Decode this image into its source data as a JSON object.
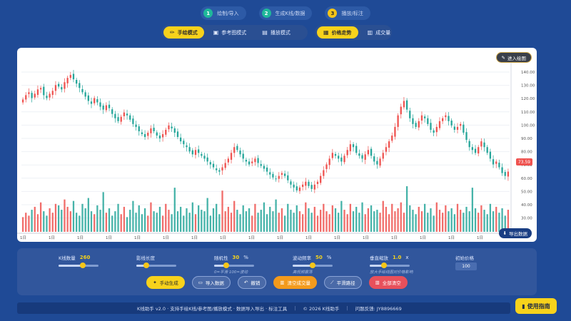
{
  "steps": [
    {
      "num": "1",
      "label": "绘制/导入"
    },
    {
      "num": "2",
      "label": "生成K线/数据"
    },
    {
      "num": "3",
      "label": "播放/标注"
    }
  ],
  "modes": {
    "draw": "手绘模式",
    "reference": "参考图模式",
    "play": "播放模式",
    "trend": "价格走势",
    "volume": "成交量"
  },
  "chart": {
    "enter_draw": "进入绘图",
    "export": "导出数据",
    "current_price": "73.59",
    "y_ticks": [
      "140.00",
      "130.00",
      "120.00",
      "110.00",
      "100.00",
      "90.00",
      "80.00",
      "70.00",
      "60.00",
      "50.00",
      "40.00",
      "30.00"
    ],
    "x_ticks": [
      "1日",
      "1日",
      "1日",
      "1日",
      "1日",
      "1日",
      "1日",
      "1日",
      "1日",
      "1日",
      "1日",
      "1日",
      "1日",
      "1日",
      "1日",
      "1日",
      "1日"
    ]
  },
  "chart_data": {
    "type": "candlestick",
    "ylim": [
      20,
      145
    ],
    "price_ylim": [
      55,
      145
    ],
    "close": [
      123,
      126,
      128,
      124,
      127,
      130,
      131,
      126,
      124,
      127,
      129,
      133,
      132,
      130,
      135,
      138,
      140,
      137,
      134,
      131,
      128,
      125,
      122,
      120,
      124,
      121,
      118,
      116,
      119,
      117,
      113,
      110,
      108,
      111,
      114,
      112,
      109,
      106,
      104,
      101,
      99,
      97,
      100,
      103,
      101,
      98,
      96,
      99,
      102,
      105,
      103,
      100,
      97,
      94,
      92,
      90,
      87,
      85,
      88,
      86,
      84,
      82,
      80,
      78,
      76,
      74,
      73,
      76,
      79,
      82,
      86,
      90,
      88,
      85,
      82,
      80,
      78,
      80,
      82,
      79,
      77,
      75,
      73,
      71,
      69,
      68,
      70,
      72,
      70,
      67,
      64,
      62,
      60,
      62,
      64,
      66,
      63,
      61,
      64,
      66,
      70,
      74,
      78,
      82,
      86,
      84,
      82,
      80,
      84,
      88,
      92,
      90,
      86,
      84,
      82,
      85,
      88,
      84,
      80,
      78,
      82,
      86,
      90,
      94,
      98,
      104,
      112,
      118,
      122,
      116,
      110,
      106,
      104,
      108,
      112,
      110,
      106,
      102,
      100,
      104,
      108,
      110,
      112,
      108,
      105,
      102,
      104,
      106,
      100,
      95,
      90,
      88,
      86,
      90,
      94,
      90,
      86,
      82,
      78,
      80,
      76,
      72,
      70,
      73
    ],
    "volume": [
      35,
      38,
      36,
      40,
      42,
      37,
      45,
      39,
      36,
      41,
      38,
      44,
      43,
      40,
      47,
      42,
      39,
      46,
      38,
      36,
      44,
      41,
      48,
      39,
      37,
      43,
      40,
      52,
      38,
      41,
      36,
      39,
      44,
      37,
      42,
      35,
      40,
      46,
      38,
      43,
      37,
      41,
      36,
      45,
      39,
      38,
      42,
      36,
      44,
      40,
      37,
      55,
      39,
      42,
      36,
      41,
      38,
      45,
      37,
      43,
      40,
      39,
      48,
      36,
      41,
      44,
      37,
      53,
      39,
      42,
      38,
      46,
      40,
      37,
      43,
      39,
      41,
      36,
      44,
      38,
      40,
      45,
      37,
      42,
      39,
      47,
      38,
      41,
      36,
      44,
      40,
      38,
      43,
      39,
      37,
      45,
      41,
      38,
      42,
      36,
      40,
      44,
      39,
      37,
      43,
      41,
      38,
      46,
      40,
      37,
      44,
      39,
      42,
      38,
      45,
      37,
      41,
      43,
      39,
      40,
      38,
      46,
      42,
      37,
      44,
      39,
      41,
      45,
      38,
      56,
      43,
      40,
      37,
      42,
      39,
      44,
      38,
      41,
      36,
      45,
      40,
      38,
      43,
      39,
      41,
      37,
      44,
      40,
      38,
      42,
      39,
      55,
      41,
      38,
      43,
      40,
      37,
      44,
      39,
      42,
      38,
      41,
      36,
      40
    ],
    "xlabel": "",
    "ylabel": ""
  },
  "controls": {
    "k_count_label": "K线数量",
    "k_count_value": "260",
    "k_count_fraction": 0.6,
    "shadow_label": "影线长度",
    "shadow_fraction": 0.25,
    "volatility_label": "随机性",
    "volatility_value": "30",
    "volatility_unit": "%",
    "volatility_fraction": 0.3,
    "volatility_hint": "0=平滑 100=波动",
    "wave_label": "波动频率",
    "wave_value": "50",
    "wave_unit": "%",
    "wave_fraction": 0.5,
    "wave_hint": "高低频震荡",
    "vscale_label": "垂直缩放",
    "vscale_value": "1.0",
    "vscale_unit": "x",
    "vscale_fraction": 0.35,
    "vscale_hint": "放大手绘线图对价格影响",
    "init_price_label": "初始价格",
    "init_price_value": "100"
  },
  "actions": {
    "manual_gen": "手动生成",
    "import": "导入数据",
    "undo": "撤销",
    "clear_volume": "清空成交量",
    "smooth": "平滑路径",
    "clear_all": "全部清空"
  },
  "footer": {
    "app": "K线助手 v2.0 · 支持手绘K线/参考图/播放模式 · 数据导入导出 · 标注工具",
    "copyright": "© 2026 K线助手",
    "feedback": "问题反馈: JY8896669"
  },
  "guide_label": "使用指南",
  "colors": {
    "up": "#ef5350",
    "down": "#26a69a",
    "accent": "#f7d21b"
  }
}
